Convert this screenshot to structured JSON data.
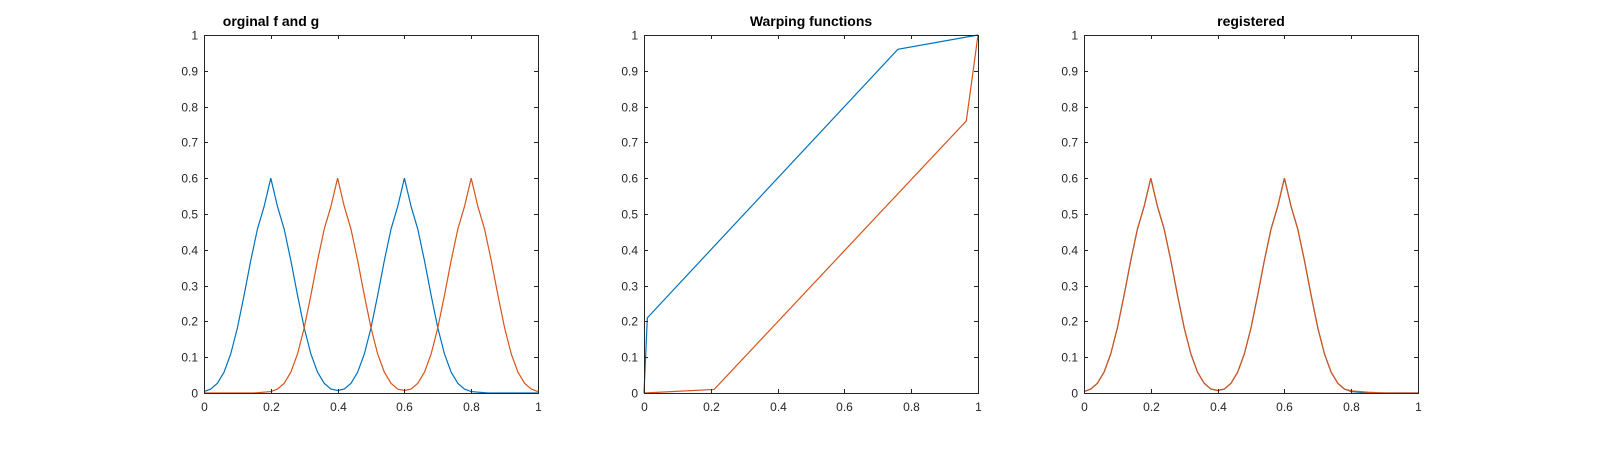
{
  "chart_data": [
    {
      "type": "line",
      "title": "orginal f and g",
      "xlabel": "",
      "ylabel": "",
      "xlim": [
        0,
        1
      ],
      "ylim": [
        0,
        1
      ],
      "xticks": [
        0,
        0.2,
        0.4,
        0.6,
        0.8,
        1
      ],
      "xtick_labels": [
        "0",
        "0.2",
        "0.4",
        "0.6",
        "0.8",
        "1"
      ],
      "yticks": [
        0,
        0.1,
        0.2,
        0.3,
        0.4,
        0.5,
        0.6,
        0.7,
        0.8,
        0.9,
        1
      ],
      "ytick_labels": [
        "0",
        "0.1",
        "0.2",
        "0.3",
        "0.4",
        "0.5",
        "0.6",
        "0.7",
        "0.8",
        "0.9",
        "1"
      ],
      "grid": false,
      "series": [
        {
          "color": "#0072BD",
          "x": [
            0,
            0.02,
            0.04,
            0.06,
            0.08,
            0.1,
            0.12,
            0.14,
            0.16,
            0.18,
            0.2,
            0.22,
            0.24,
            0.26,
            0.28,
            0.3,
            0.32,
            0.34,
            0.36,
            0.38,
            0.4,
            0.42,
            0.44,
            0.46,
            0.48,
            0.5,
            0.52,
            0.54,
            0.56,
            0.58,
            0.6,
            0.62,
            0.64,
            0.66,
            0.68,
            0.7,
            0.72,
            0.74,
            0.76,
            0.78,
            0.8,
            0.85,
            0.9,
            0.95,
            1.0
          ],
          "y": [
            0.004,
            0.011,
            0.027,
            0.058,
            0.109,
            0.182,
            0.273,
            0.37,
            0.458,
            0.521,
            0.6,
            0.521,
            0.458,
            0.37,
            0.273,
            0.182,
            0.109,
            0.058,
            0.027,
            0.011,
            0.007,
            0.011,
            0.027,
            0.058,
            0.109,
            0.182,
            0.273,
            0.37,
            0.458,
            0.521,
            0.6,
            0.521,
            0.458,
            0.37,
            0.273,
            0.182,
            0.109,
            0.058,
            0.027,
            0.011,
            0.004,
            0.0,
            0.0,
            0.0,
            0.0
          ]
        },
        {
          "color": "#D95319",
          "x": [
            0,
            0.05,
            0.1,
            0.15,
            0.2,
            0.22,
            0.24,
            0.26,
            0.28,
            0.3,
            0.32,
            0.34,
            0.36,
            0.38,
            0.4,
            0.42,
            0.44,
            0.46,
            0.48,
            0.5,
            0.52,
            0.54,
            0.56,
            0.58,
            0.6,
            0.62,
            0.64,
            0.66,
            0.68,
            0.7,
            0.72,
            0.74,
            0.76,
            0.78,
            0.8,
            0.82,
            0.84,
            0.86,
            0.88,
            0.9,
            0.92,
            0.94,
            0.96,
            0.98,
            1.0
          ],
          "y": [
            0.0,
            0.0,
            0.0,
            0.0,
            0.004,
            0.011,
            0.027,
            0.058,
            0.109,
            0.182,
            0.273,
            0.37,
            0.458,
            0.521,
            0.6,
            0.521,
            0.458,
            0.37,
            0.273,
            0.182,
            0.109,
            0.058,
            0.027,
            0.011,
            0.007,
            0.011,
            0.027,
            0.058,
            0.109,
            0.182,
            0.273,
            0.37,
            0.458,
            0.521,
            0.6,
            0.521,
            0.458,
            0.37,
            0.273,
            0.182,
            0.109,
            0.058,
            0.027,
            0.011,
            0.004
          ]
        }
      ]
    },
    {
      "type": "line",
      "title": "Warping functions",
      "xlabel": "",
      "ylabel": "",
      "xlim": [
        0,
        1
      ],
      "ylim": [
        0,
        1
      ],
      "xticks": [
        0,
        0.2,
        0.4,
        0.6,
        0.8,
        1
      ],
      "xtick_labels": [
        "0",
        "0.2",
        "0.4",
        "0.6",
        "0.8",
        "1"
      ],
      "yticks": [
        0,
        0.1,
        0.2,
        0.3,
        0.4,
        0.5,
        0.6,
        0.7,
        0.8,
        0.9,
        1
      ],
      "ytick_labels": [
        "0",
        "0.1",
        "0.2",
        "0.3",
        "0.4",
        "0.5",
        "0.6",
        "0.7",
        "0.8",
        "0.9",
        "1"
      ],
      "grid": false,
      "series": [
        {
          "color": "#0072BD",
          "x": [
            0,
            0.01,
            0.76,
            1.0
          ],
          "y": [
            0,
            0.21,
            0.96,
            1.0
          ]
        },
        {
          "color": "#D95319",
          "x": [
            0,
            0.21,
            0.965,
            1.0
          ],
          "y": [
            0,
            0.01,
            0.76,
            1.0
          ]
        }
      ]
    },
    {
      "type": "line",
      "title": "registered",
      "xlabel": "",
      "ylabel": "",
      "xlim": [
        0,
        1
      ],
      "ylim": [
        0,
        1
      ],
      "xticks": [
        0,
        0.2,
        0.4,
        0.6,
        0.8,
        1
      ],
      "xtick_labels": [
        "0",
        "0.2",
        "0.4",
        "0.6",
        "0.8",
        "1"
      ],
      "yticks": [
        0,
        0.1,
        0.2,
        0.3,
        0.4,
        0.5,
        0.6,
        0.7,
        0.8,
        0.9,
        1
      ],
      "ytick_labels": [
        "0",
        "0.1",
        "0.2",
        "0.3",
        "0.4",
        "0.5",
        "0.6",
        "0.7",
        "0.8",
        "0.9",
        "1"
      ],
      "grid": false,
      "series": [
        {
          "color": "#0072BD",
          "x": [
            0,
            0.02,
            0.04,
            0.06,
            0.08,
            0.1,
            0.12,
            0.14,
            0.16,
            0.18,
            0.2,
            0.22,
            0.24,
            0.26,
            0.28,
            0.3,
            0.32,
            0.34,
            0.36,
            0.38,
            0.4,
            0.42,
            0.44,
            0.46,
            0.48,
            0.5,
            0.52,
            0.54,
            0.56,
            0.58,
            0.6,
            0.62,
            0.64,
            0.66,
            0.68,
            0.7,
            0.72,
            0.74,
            0.76,
            0.78,
            0.8,
            0.85,
            0.9,
            0.95,
            1.0
          ],
          "y": [
            0.004,
            0.011,
            0.027,
            0.058,
            0.109,
            0.182,
            0.273,
            0.37,
            0.458,
            0.521,
            0.6,
            0.521,
            0.458,
            0.37,
            0.273,
            0.182,
            0.109,
            0.058,
            0.027,
            0.011,
            0.007,
            0.011,
            0.027,
            0.058,
            0.109,
            0.182,
            0.273,
            0.37,
            0.458,
            0.521,
            0.6,
            0.521,
            0.458,
            0.37,
            0.273,
            0.182,
            0.109,
            0.058,
            0.027,
            0.011,
            0.004,
            0.0,
            0.0,
            0.0,
            0.0
          ]
        },
        {
          "color": "#D95319",
          "x": [
            0,
            0.02,
            0.04,
            0.06,
            0.08,
            0.1,
            0.12,
            0.14,
            0.16,
            0.18,
            0.2,
            0.22,
            0.24,
            0.26,
            0.28,
            0.3,
            0.32,
            0.34,
            0.36,
            0.38,
            0.4,
            0.42,
            0.44,
            0.46,
            0.48,
            0.5,
            0.52,
            0.54,
            0.56,
            0.58,
            0.6,
            0.62,
            0.64,
            0.66,
            0.68,
            0.7,
            0.72,
            0.74,
            0.76,
            0.78,
            0.8,
            0.85,
            0.9,
            0.95,
            1.0
          ],
          "y": [
            0.004,
            0.011,
            0.027,
            0.058,
            0.109,
            0.182,
            0.273,
            0.37,
            0.458,
            0.521,
            0.6,
            0.521,
            0.458,
            0.37,
            0.273,
            0.182,
            0.109,
            0.058,
            0.027,
            0.011,
            0.007,
            0.011,
            0.027,
            0.058,
            0.109,
            0.182,
            0.273,
            0.37,
            0.458,
            0.521,
            0.6,
            0.521,
            0.458,
            0.37,
            0.273,
            0.182,
            0.109,
            0.058,
            0.027,
            0.011,
            0.006,
            0.002,
            0.0,
            0.0,
            0.0
          ]
        }
      ]
    }
  ]
}
